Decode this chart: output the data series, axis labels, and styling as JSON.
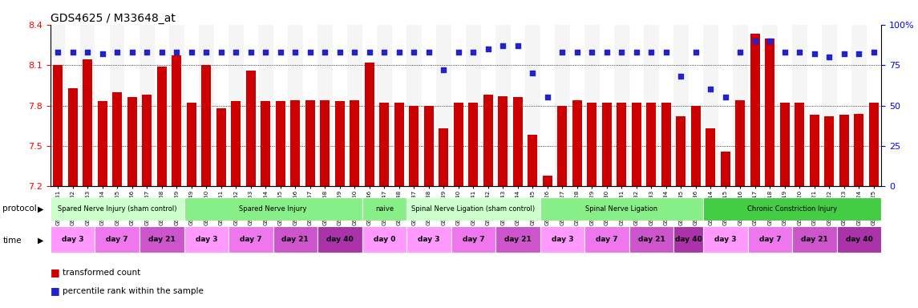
{
  "title": "GDS4625 / M33648_at",
  "bar_values": [
    8.1,
    7.93,
    8.14,
    7.83,
    7.9,
    7.86,
    7.88,
    8.09,
    8.17,
    7.82,
    8.1,
    7.78,
    7.83,
    8.06,
    7.83,
    7.83,
    7.84,
    7.84,
    7.84,
    7.83,
    7.84,
    8.12,
    7.82,
    7.82,
    7.8,
    7.8,
    7.63,
    7.82,
    7.82,
    7.88,
    7.87,
    7.86,
    7.58,
    7.28,
    7.8,
    7.84,
    7.82,
    7.82,
    7.82,
    7.82,
    7.82,
    7.82,
    7.72,
    7.8,
    7.63,
    7.46,
    7.84,
    8.33,
    8.3,
    7.82,
    7.82,
    7.73,
    7.72,
    7.73,
    7.74,
    7.82
  ],
  "percentile_values": [
    83,
    83,
    83,
    82,
    83,
    83,
    83,
    83,
    83,
    83,
    83,
    83,
    83,
    83,
    83,
    83,
    83,
    83,
    83,
    83,
    83,
    83,
    83,
    83,
    83,
    83,
    72,
    83,
    83,
    85,
    87,
    87,
    70,
    55,
    83,
    83,
    83,
    83,
    83,
    83,
    83,
    83,
    68,
    83,
    60,
    55,
    83,
    90,
    90,
    83,
    83,
    82,
    80,
    82,
    82,
    83
  ],
  "sample_ids": [
    "GSM761261",
    "GSM761262",
    "GSM761263",
    "GSM761264",
    "GSM761265",
    "GSM761266",
    "GSM761267",
    "GSM761268",
    "GSM761269",
    "GSM761249",
    "GSM761250",
    "GSM761251",
    "GSM761252",
    "GSM761253",
    "GSM761254",
    "GSM761255",
    "GSM761256",
    "GSM761257",
    "GSM761258",
    "GSM761259",
    "GSM761260",
    "GSM761246",
    "GSM761247",
    "GSM761248",
    "GSM761237",
    "GSM761238",
    "GSM761239",
    "GSM761240",
    "GSM761241",
    "GSM761242",
    "GSM761243",
    "GSM761244",
    "GSM761245",
    "GSM761226",
    "GSM761227",
    "GSM761228",
    "GSM761229",
    "GSM761230",
    "GSM761231",
    "GSM761232",
    "GSM761233",
    "GSM761234",
    "GSM761235",
    "GSM761236",
    "GSM761214",
    "GSM761215",
    "GSM761216",
    "GSM761217",
    "GSM761218",
    "GSM761219",
    "GSM761220",
    "GSM761221",
    "GSM761222",
    "GSM761223",
    "GSM761224",
    "GSM761225"
  ],
  "ylim_left": [
    7.2,
    8.4
  ],
  "yticks_left": [
    7.2,
    7.5,
    7.8,
    8.1,
    8.4
  ],
  "ylim_right": [
    0,
    100
  ],
  "yticks_right": [
    0,
    25,
    50,
    75,
    100
  ],
  "bar_color": "#cc0000",
  "dot_color": "#2222cc",
  "protocols": [
    {
      "label": "Spared Nerve Injury (sham control)",
      "color": "#ccffcc",
      "start": 0,
      "end": 9
    },
    {
      "label": "Spared Nerve Injury",
      "color": "#88ee88",
      "start": 9,
      "end": 21
    },
    {
      "label": "naive",
      "color": "#88ee88",
      "start": 21,
      "end": 24
    },
    {
      "label": "Spinal Nerve Ligation (sham control)",
      "color": "#ccffcc",
      "start": 24,
      "end": 33
    },
    {
      "label": "Spinal Nerve Ligation",
      "color": "#88ee88",
      "start": 33,
      "end": 44
    },
    {
      "label": "Chronic Constriction Injury",
      "color": "#44cc44",
      "start": 44,
      "end": 56
    }
  ],
  "times": [
    {
      "label": "day 3",
      "color": "#ff99ff",
      "start": 0,
      "end": 3
    },
    {
      "label": "day 7",
      "color": "#ee77ee",
      "start": 3,
      "end": 6
    },
    {
      "label": "day 21",
      "color": "#cc55cc",
      "start": 6,
      "end": 9
    },
    {
      "label": "day 3",
      "color": "#ff99ff",
      "start": 9,
      "end": 12
    },
    {
      "label": "day 7",
      "color": "#ee77ee",
      "start": 12,
      "end": 15
    },
    {
      "label": "day 21",
      "color": "#cc55cc",
      "start": 15,
      "end": 18
    },
    {
      "label": "day 40",
      "color": "#aa33aa",
      "start": 18,
      "end": 21
    },
    {
      "label": "day 0",
      "color": "#ff99ff",
      "start": 21,
      "end": 24
    },
    {
      "label": "day 3",
      "color": "#ff99ff",
      "start": 24,
      "end": 27
    },
    {
      "label": "day 7",
      "color": "#ee77ee",
      "start": 27,
      "end": 30
    },
    {
      "label": "day 21",
      "color": "#cc55cc",
      "start": 30,
      "end": 33
    },
    {
      "label": "day 3",
      "color": "#ff99ff",
      "start": 33,
      "end": 36
    },
    {
      "label": "day 7",
      "color": "#ee77ee",
      "start": 36,
      "end": 39
    },
    {
      "label": "day 21",
      "color": "#cc55cc",
      "start": 39,
      "end": 42
    },
    {
      "label": "day 40",
      "color": "#aa33aa",
      "start": 42,
      "end": 44
    },
    {
      "label": "day 3",
      "color": "#ff99ff",
      "start": 44,
      "end": 47
    },
    {
      "label": "day 7",
      "color": "#ee77ee",
      "start": 47,
      "end": 50
    },
    {
      "label": "day 21",
      "color": "#cc55cc",
      "start": 50,
      "end": 53
    },
    {
      "label": "day 40",
      "color": "#aa33aa",
      "start": 53,
      "end": 56
    }
  ]
}
